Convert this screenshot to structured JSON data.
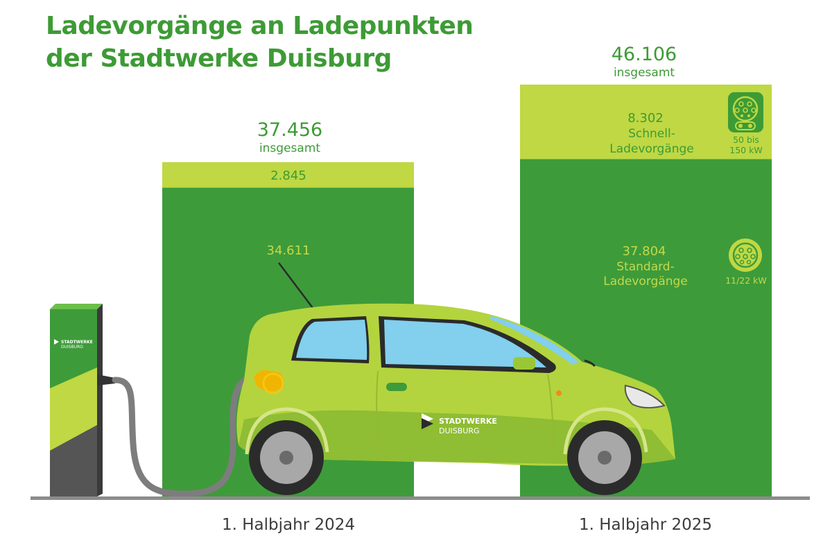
{
  "title_lines": [
    "Ladevorgänge an Ladepunkten",
    "der Stadtwerke Duisburg"
  ],
  "chart_data": {
    "type": "bar",
    "stacked": true,
    "categories": [
      "1. Halbjahr 2024",
      "1. Halbjahr 2025"
    ],
    "series": [
      {
        "name": "Standard-Ladevorgänge",
        "values": [
          34611,
          37804
        ],
        "labels": [
          "34.611",
          "37.804"
        ],
        "color": "#3e9b3a",
        "label_color": "#c2d94a"
      },
      {
        "name": "Schnell-Ladevorgänge",
        "values": [
          2845,
          8302
        ],
        "labels": [
          "2.845",
          "8.302"
        ],
        "color": "#bfd843",
        "label_color": "#3d9b35"
      }
    ],
    "totals": [
      {
        "value": 37456,
        "label": "37.456",
        "sublabel": "insgesamt"
      },
      {
        "value": 46106,
        "label": "46.106",
        "sublabel": "insgesamt"
      }
    ],
    "series_text": {
      "fast_name_lines": [
        "Schnell-",
        "Ladevorgänge"
      ],
      "standard_name_lines": [
        "Standard-",
        "Ladevorgänge"
      ]
    },
    "connectors": {
      "fast": {
        "icon": "ccs-plug-icon",
        "power_lines": [
          "50 bis",
          "150 kW"
        ]
      },
      "standard": {
        "icon": "type2-plug-icon",
        "power": "11/22 kW"
      }
    },
    "brand": {
      "line1": "STADTWERKE",
      "line2": "DUISBURG"
    },
    "colors": {
      "title": "#3d9b35",
      "dark_green": "#3e9b3a",
      "light_green": "#bfd843",
      "category_text": "#3c3c3c",
      "ground": "#8c8c8c"
    }
  }
}
